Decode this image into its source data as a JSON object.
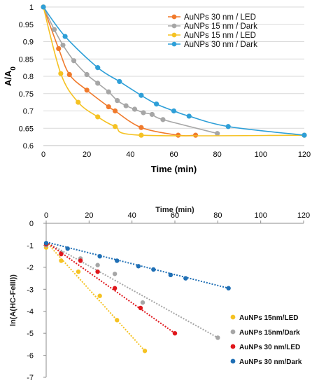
{
  "chart_data": [
    {
      "type": "scatter",
      "title": "",
      "xlabel": "Time (min)",
      "ylabel": "A/A",
      "ylabel_subscript": "0",
      "xlim": [
        0,
        120
      ],
      "ylim": [
        0.6,
        1.0
      ],
      "xticks": [
        "0",
        "20",
        "40",
        "60",
        "80",
        "100",
        "120"
      ],
      "yticks": [
        "0.6",
        "0.65",
        "0.7",
        "0.75",
        "0.8",
        "0.85",
        "0.9",
        "0.95",
        "1"
      ],
      "grid": true,
      "legend": "top-right",
      "series": [
        {
          "name": "AuNPs 30 nm / LED",
          "color": "#f07a2c",
          "x": [
            0,
            7,
            12,
            20,
            30,
            33,
            45,
            62,
            70
          ],
          "y": [
            1.0,
            0.88,
            0.805,
            0.76,
            0.712,
            0.7,
            0.652,
            0.63,
            0.63
          ]
        },
        {
          "name": "AuNPs 15 nm / Dark",
          "color": "#a6a6a6",
          "x": [
            0,
            5,
            9,
            14,
            20,
            25,
            30,
            34,
            38,
            42,
            46,
            50,
            55,
            80
          ],
          "y": [
            1.0,
            0.935,
            0.89,
            0.845,
            0.805,
            0.78,
            0.755,
            0.73,
            0.715,
            0.705,
            0.695,
            0.69,
            0.675,
            0.635
          ]
        },
        {
          "name": "AuNPs 15 nm / LED",
          "color": "#f5c223",
          "x": [
            0,
            8,
            16,
            25,
            33,
            45,
            120
          ],
          "y": [
            1.0,
            0.808,
            0.725,
            0.683,
            0.655,
            0.63,
            0.63
          ]
        },
        {
          "name": "AuNPs 30 nm / Dark",
          "color": "#2e9fd8",
          "x": [
            0,
            10,
            25,
            35,
            45,
            52,
            60,
            67,
            85,
            120
          ],
          "y": [
            1.0,
            0.915,
            0.825,
            0.785,
            0.745,
            0.72,
            0.7,
            0.685,
            0.655,
            0.63
          ]
        }
      ]
    },
    {
      "type": "scatter",
      "title": "",
      "xlabel": "Time (min)",
      "ylabel": "ln(A(HC-FeIII))",
      "xlim": [
        0,
        120
      ],
      "ylim": [
        -7,
        0
      ],
      "xticks": [
        "0",
        "20",
        "40",
        "60",
        "80",
        "100",
        "120"
      ],
      "yticks": [
        "0",
        "-1",
        "-2",
        "-3",
        "-4",
        "-5",
        "-6",
        "-7"
      ],
      "grid": false,
      "legend": "bottom-right",
      "series": [
        {
          "name": "AuNPs 15nm/LED",
          "color": "#f5c223",
          "x": [
            0,
            7,
            15,
            25,
            33,
            46
          ],
          "y": [
            -1.1,
            -1.7,
            -2.2,
            -3.3,
            -4.4,
            -5.8
          ],
          "trend": [
            [
              0,
              -0.85
            ],
            [
              46,
              -5.8
            ]
          ]
        },
        {
          "name": "AuNPs 15nm/Dark",
          "color": "#a6a6a6",
          "x": [
            0,
            7,
            16,
            24,
            32,
            45,
            80
          ],
          "y": [
            -1.0,
            -1.35,
            -1.6,
            -1.9,
            -2.3,
            -3.6,
            -5.2
          ],
          "trend": [
            [
              0,
              -0.85
            ],
            [
              80,
              -5.2
            ]
          ]
        },
        {
          "name": "AuNPs 30 nm/LED",
          "color": "#e0161b",
          "x": [
            0,
            7,
            16,
            24,
            32,
            44,
            60
          ],
          "y": [
            -0.95,
            -1.4,
            -1.7,
            -2.2,
            -2.95,
            -3.85,
            -5.0
          ],
          "trend": [
            [
              0,
              -0.85
            ],
            [
              60,
              -5.0
            ]
          ]
        },
        {
          "name": "AuNPs 30 nm/Dark",
          "color": "#1f6fb5",
          "x": [
            0,
            10,
            25,
            33,
            43,
            50,
            58,
            65,
            85
          ],
          "y": [
            -0.9,
            -1.15,
            -1.5,
            -1.7,
            -1.95,
            -2.1,
            -2.35,
            -2.5,
            -2.95
          ],
          "trend": [
            [
              0,
              -0.85
            ],
            [
              85,
              -2.95
            ]
          ]
        }
      ]
    }
  ]
}
